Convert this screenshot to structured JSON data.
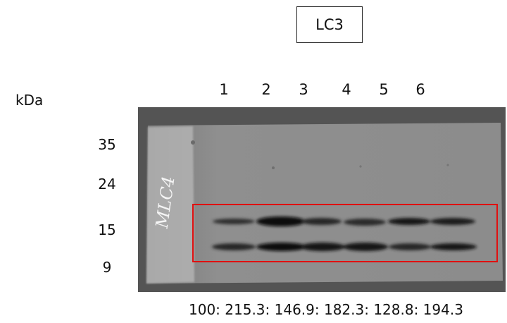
{
  "protein_label": "LC3",
  "unit_label": "kDa",
  "lanes": [
    "1",
    "2",
    "3",
    "4",
    "5",
    "6"
  ],
  "markers": [
    "35",
    "24",
    "15",
    "9"
  ],
  "membrane_handwriting": "MLC4",
  "quantification": "100: 215.3: 146.9: 182.3: 128.8: 194.3",
  "colors": {
    "highlight_box": "#e01010",
    "membrane": "#8e8e8e",
    "band": "#111111"
  }
}
